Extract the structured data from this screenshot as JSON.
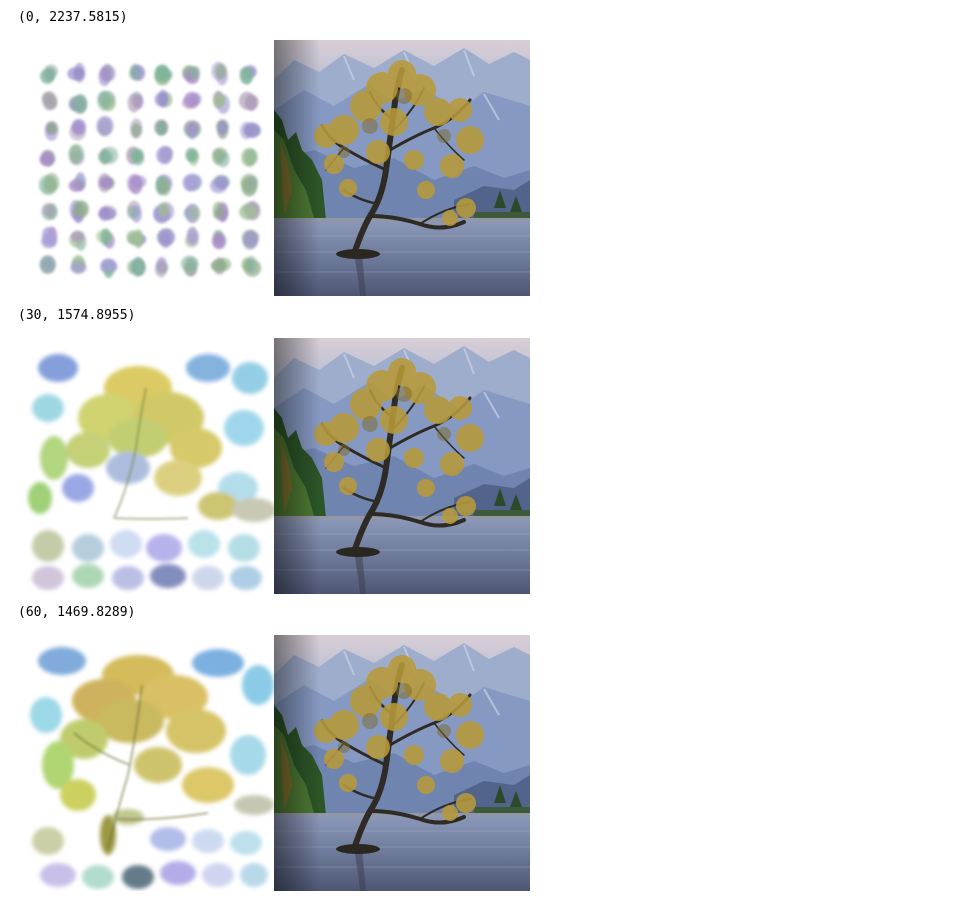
{
  "steps": [
    {
      "label": "(0, 2237.5815)",
      "painting_icon": "brush-stroke-grid-image",
      "target_icon": "lone-tree-lake-photo"
    },
    {
      "label": "(30, 1574.8955)",
      "painting_icon": "partial-tree-painting-image",
      "target_icon": "lone-tree-lake-photo"
    },
    {
      "label": "(60, 1469.8289)",
      "painting_icon": "tree-painting-image",
      "target_icon": "lone-tree-lake-photo"
    }
  ],
  "colors": {
    "background": "#ffffff",
    "text": "#000000",
    "sky": "#b9c4dc",
    "mountain": "#7c8fb8",
    "water": "#6a7698",
    "foliage": "#b79a3a",
    "trees": "#2f5a2a",
    "trunk": "#2e2a24"
  }
}
